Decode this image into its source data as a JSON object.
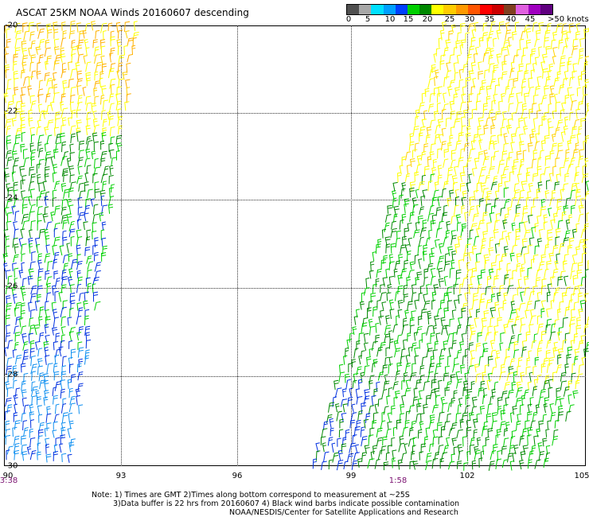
{
  "title": "ASCAT 25KM NOAA Winds 20160607 descending",
  "color_scale": {
    "unit": ">50 knots",
    "tick_labels": [
      "0",
      "5",
      "10",
      "15",
      "20",
      "25",
      "30",
      "35",
      "40",
      "45"
    ],
    "colors": [
      "#505050",
      "#a8a8a8",
      "#00e0ff",
      "#00a0ff",
      "#0040ff",
      "#00d000",
      "#008800",
      "#ffff00",
      "#ffcc00",
      "#ff9900",
      "#ff5500",
      "#ff0000",
      "#cc0000",
      "#804020",
      "#e060e0",
      "#a000c0",
      "#600080"
    ]
  },
  "map": {
    "lon_labels": [
      "90",
      "93",
      "96",
      "99",
      "102",
      "105"
    ],
    "lat_labels": [
      "-20",
      "-22",
      "-24",
      "-26",
      "-28",
      "-30"
    ],
    "pass_times": [
      "3:38",
      "1:58"
    ]
  },
  "barb_colors": {
    "yellow": "#ffff00",
    "gold": "#ffd200",
    "orange": "#ffb000",
    "green": "#00d000",
    "dark_green": "#008800",
    "blue": "#0030e0",
    "light_blue": "#1090f0"
  },
  "footer": {
    "line1": "Note: 1) Times are GMT 2)Times along bottom correspond to measurement at ~25S",
    "line2": "3)Data buffer is 22 hrs from 20160607 4) Black wind barbs indicate possible contamination",
    "line3": "NOAA/NESDIS/Center for Satellite Applications and Research"
  }
}
